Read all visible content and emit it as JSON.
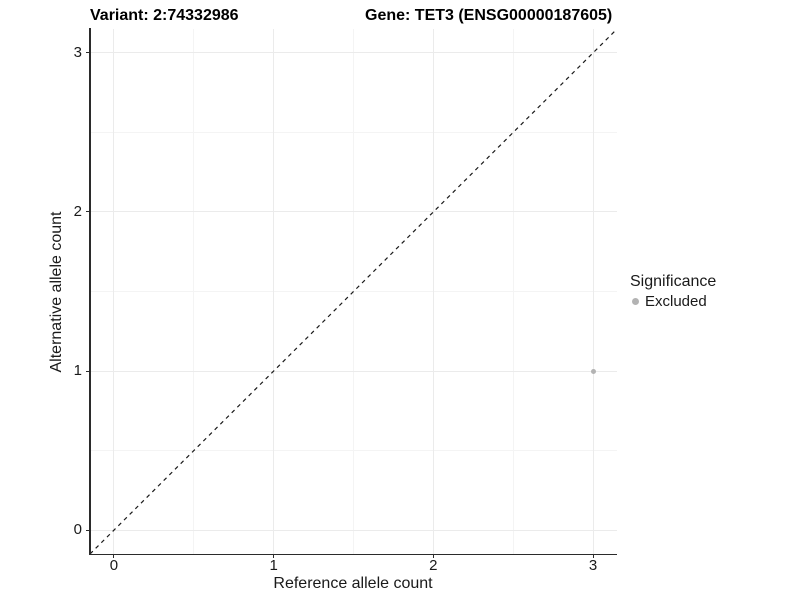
{
  "chart_data": {
    "type": "scatter",
    "titles": {
      "variant": "Variant: 2:74332986",
      "gene": "Gene: TET3 (ENSG00000187605)"
    },
    "xlabel": "Reference allele count",
    "ylabel": "Alternative allele count",
    "xlim": [
      -0.15,
      3.15
    ],
    "ylim": [
      -0.15,
      3.15
    ],
    "xticks": [
      0,
      1,
      2,
      3
    ],
    "yticks": [
      0,
      1,
      2,
      3
    ],
    "grid": {
      "major": true,
      "minor": true,
      "major_color": "#ebebeb",
      "minor_color": "#f4f4f4"
    },
    "reference_line": {
      "kind": "identity",
      "style": "dashed",
      "from": [
        -0.15,
        -0.15
      ],
      "to": [
        3.15,
        3.15
      ],
      "color": "#1a1a1a"
    },
    "series": [
      {
        "name": "Excluded",
        "color": "#b3b3b3",
        "points": [
          {
            "x": 3,
            "y": 1
          }
        ]
      }
    ],
    "legend": {
      "title": "Significance",
      "position": "right",
      "items": [
        {
          "label": "Excluded",
          "color": "#b3b3b3"
        }
      ]
    }
  }
}
